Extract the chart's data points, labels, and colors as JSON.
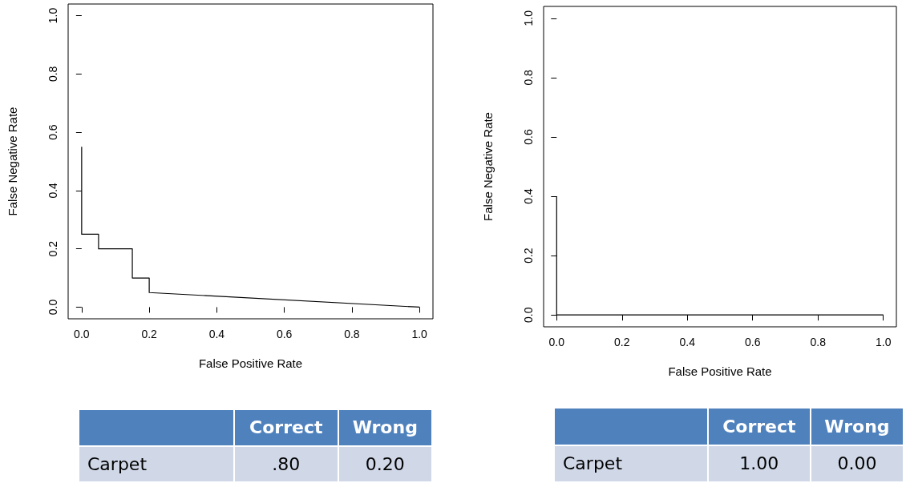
{
  "chart_data": [
    {
      "type": "line",
      "xlabel": "False Positive Rate",
      "ylabel": "False Negative Rate",
      "xlim": [
        -0.04,
        1.04
      ],
      "ylim": [
        -0.04,
        1.04
      ],
      "xticks": [
        {
          "value": 0,
          "label": "0.0"
        },
        {
          "value": 0.2,
          "label": "0.2"
        },
        {
          "value": 0.4,
          "label": "0.4"
        },
        {
          "value": 0.6,
          "label": "0.6"
        },
        {
          "value": 0.8,
          "label": "0.8"
        },
        {
          "value": 1,
          "label": "1.0"
        }
      ],
      "yticks": [
        {
          "value": 0,
          "label": "0.0"
        },
        {
          "value": 0.2,
          "label": "0.2"
        },
        {
          "value": 0.4,
          "label": "0.4"
        },
        {
          "value": 0.6,
          "label": "0.6"
        },
        {
          "value": 0.8,
          "label": "0.8"
        },
        {
          "value": 1,
          "label": "1.0"
        }
      ],
      "grid": false,
      "marker": "none",
      "line_style": "solid",
      "series": [
        {
          "color": "#000000",
          "x": [
            0,
            0,
            0.05,
            0.05,
            0.15,
            0.15,
            0.2,
            0.2,
            1
          ],
          "values": [
            0.55,
            0.25,
            0.25,
            0.2,
            0.2,
            0.1,
            0.1,
            0.05,
            0
          ]
        }
      ]
    },
    {
      "type": "other",
      "categories": [
        "Correct",
        "Wrong"
      ],
      "y_categories": [
        "Carpet"
      ],
      "cell_labels": [
        [
          ".80",
          "0.20"
        ]
      ]
    },
    {
      "type": "line",
      "xlabel": "False Positive Rate",
      "ylabel": "False Negative Rate",
      "xlim": [
        -0.04,
        1.04
      ],
      "ylim": [
        -0.04,
        1.04
      ],
      "xticks": [
        {
          "value": 0,
          "label": "0.0"
        },
        {
          "value": 0.2,
          "label": "0.2"
        },
        {
          "value": 0.4,
          "label": "0.4"
        },
        {
          "value": 0.6,
          "label": "0.6"
        },
        {
          "value": 0.8,
          "label": "0.8"
        },
        {
          "value": 1,
          "label": "1.0"
        }
      ],
      "yticks": [
        {
          "value": 0,
          "label": "0.0"
        },
        {
          "value": 0.2,
          "label": "0.2"
        },
        {
          "value": 0.4,
          "label": "0.4"
        },
        {
          "value": 0.6,
          "label": "0.6"
        },
        {
          "value": 0.8,
          "label": "0.8"
        },
        {
          "value": 1,
          "label": "1.0"
        }
      ],
      "grid": false,
      "marker": "none",
      "line_style": "solid",
      "series": [
        {
          "color": "#000000",
          "x": [
            0,
            0,
            1
          ],
          "values": [
            0.4,
            0,
            0
          ]
        }
      ]
    },
    {
      "type": "other",
      "categories": [
        "Correct",
        "Wrong"
      ],
      "y_categories": [
        "Carpet"
      ],
      "cell_labels": [
        [
          "1.00",
          "0.00"
        ]
      ]
    }
  ]
}
